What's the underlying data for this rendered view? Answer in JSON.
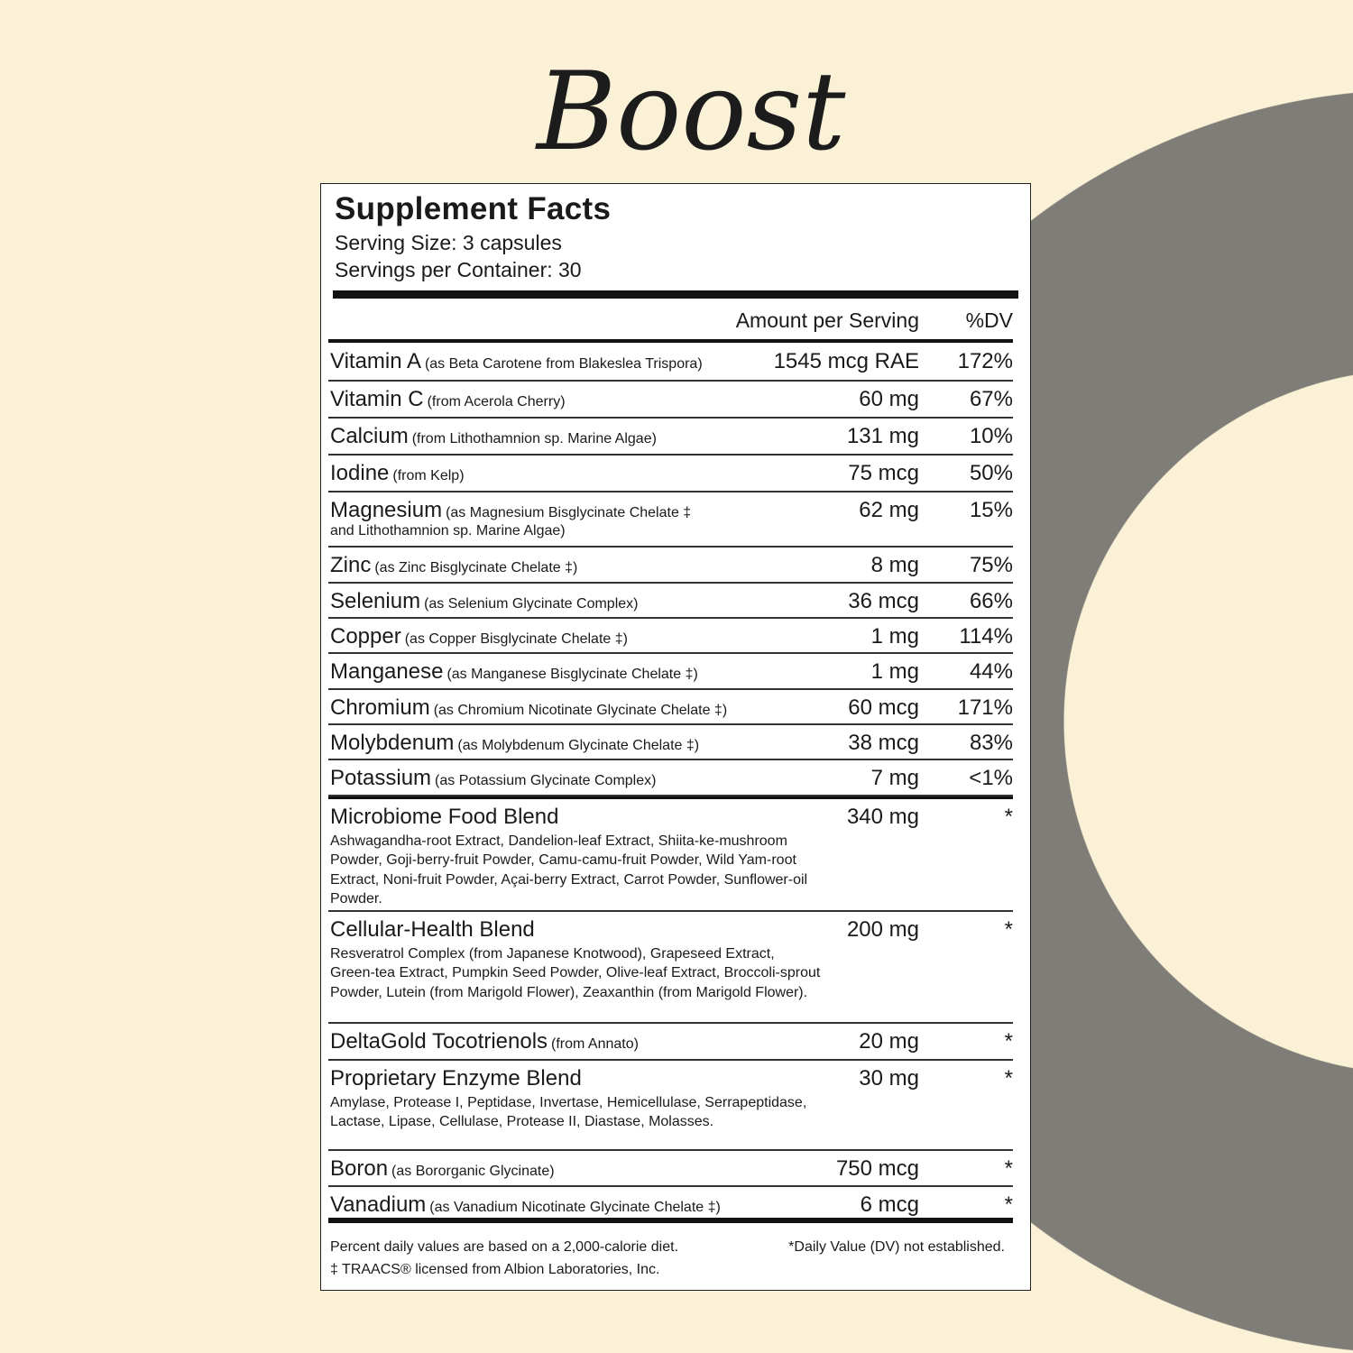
{
  "brand": {
    "logo_text": "Boost"
  },
  "colors": {
    "background": "#fbf1d7",
    "ring": "#7e7d77",
    "label_bg": "#ffffff",
    "text": "#1a1a1a"
  },
  "facts": {
    "title": "Supplement Facts",
    "serving_size": "Serving Size: 3 capsules",
    "servings_per_container": "Servings per Container: 30",
    "header_amount": "Amount per Serving",
    "header_dv": "%DV",
    "nutrients": [
      {
        "name": "Vitamin A",
        "source": "(as Beta Carotene from Blakeslea Trispora)",
        "amount": "1545 mcg RAE",
        "dv": "172%"
      },
      {
        "name": "Vitamin C",
        "source": "(from Acerola Cherry)",
        "amount": "60 mg",
        "dv": "67%"
      },
      {
        "name": "Calcium",
        "source": "(from Lithothamnion sp. Marine Algae)",
        "amount": "131 mg",
        "dv": "10%"
      },
      {
        "name": "Iodine",
        "source": "(from Kelp)",
        "amount": "75 mcg",
        "dv": "50%"
      },
      {
        "name": "Magnesium",
        "source": "(as Magnesium Bisglycinate Chelate ‡",
        "source_line2": "and Lithothamnion sp. Marine Algae)",
        "amount": "62 mg",
        "dv": "15%"
      },
      {
        "name": "Zinc",
        "source": "(as Zinc Bisglycinate Chelate ‡)",
        "amount": "8 mg",
        "dv": "75%"
      },
      {
        "name": "Selenium",
        "source": "(as Selenium Glycinate Complex)",
        "amount": "36 mcg",
        "dv": "66%"
      },
      {
        "name": "Copper",
        "source": "(as Copper Bisglycinate Chelate ‡)",
        "amount": "1 mg",
        "dv": "114%"
      },
      {
        "name": "Manganese",
        "source": "(as Manganese Bisglycinate Chelate ‡)",
        "amount": "1 mg",
        "dv": "44%"
      },
      {
        "name": "Chromium",
        "source": "(as Chromium Nicotinate Glycinate Chelate ‡)",
        "amount": "60 mcg",
        "dv": "171%"
      },
      {
        "name": "Molybdenum",
        "source": "(as Molybdenum Glycinate Chelate ‡)",
        "amount": "38 mcg",
        "dv": "83%"
      },
      {
        "name": "Potassium",
        "source": "(as Potassium Glycinate Complex)",
        "amount": "7 mg",
        "dv": "<1%"
      }
    ],
    "blends": [
      {
        "name": "Microbiome Food Blend",
        "amount": "340 mg",
        "dv": "*",
        "ingredients": "Ashwagandha-root Extract, Dandelion-leaf Extract, Shiita-ke-mushroom Powder, Goji-berry-fruit Powder, Camu-camu-fruit Powder, Wild Yam-root Extract, Noni-fruit Powder, Açai-berry Extract, Carrot Powder, Sunflower-oil Powder."
      },
      {
        "name": "Cellular-Health Blend",
        "amount": "200 mg",
        "dv": "*",
        "ingredients": "Resveratrol Complex (from Japanese Knotwood), Grapeseed Extract, Green-tea Extract, Pumpkin Seed Powder, Olive-leaf Extract, Broccoli-sprout Powder, Lutein (from Marigold Flower), Zeaxanthin (from Marigold Flower)."
      },
      {
        "name": "DeltaGold Tocotrienols",
        "source": "(from Annato)",
        "amount": "20 mg",
        "dv": "*"
      },
      {
        "name": "Proprietary Enzyme Blend",
        "amount": "30 mg",
        "dv": "*",
        "ingredients": "Amylase, Protease I, Peptidase, Invertase, Hemicellulase, Serrapeptidase, Lactase, Lipase, Cellulase, Protease II, Diastase, Molasses."
      },
      {
        "name": "Boron",
        "source": "(as Bororganic Glycinate)",
        "amount": "750 mcg",
        "dv": "*"
      },
      {
        "name": "Vanadium",
        "source": "(as Vanadium Nicotinate Glycinate Chelate ‡)",
        "amount": "6 mcg",
        "dv": "*"
      }
    ],
    "footnote_dv": "Percent daily values are based on a 2,000-calorie diet.",
    "footnote_star": "*Daily Value (DV) not established.",
    "footnote_traacs": "‡ TRAACS® licensed from Albion Laboratories, Inc."
  }
}
